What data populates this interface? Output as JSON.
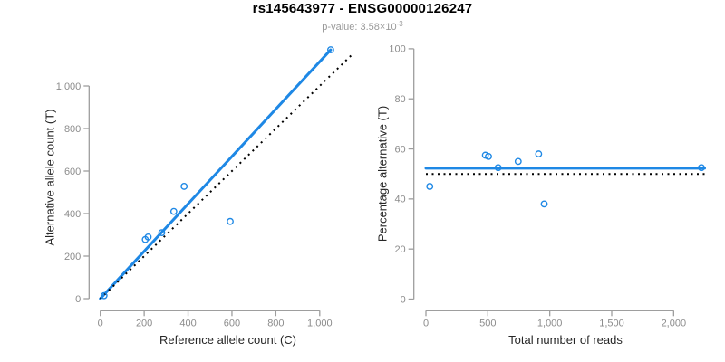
{
  "header": {
    "title": "rs145643977 - ENSG00000126247",
    "subtitle_prefix": "p-value: 3.58×10",
    "subtitle_exponent": "-3"
  },
  "colors": {
    "accent_blue": "#1E88E5",
    "line_black": "#000000",
    "axis_line": "#9E9E9E",
    "tick_label": "#8C8C8C",
    "axis_title": "#262626",
    "title_text": "#000000",
    "subtitle_text": "#999999",
    "background": "#FFFFFF"
  },
  "chart_data": [
    {
      "type": "scatter",
      "name": "allele-counts-scatter",
      "xlabel": "Reference allele count (C)",
      "ylabel": "Alternative allele count (T)",
      "xlim": [
        0,
        1150
      ],
      "ylim": [
        0,
        1200
      ],
      "grid": false,
      "legend": "none",
      "xticks": {
        "values": [
          0,
          200,
          400,
          600,
          800,
          1000
        ],
        "labels": [
          "0",
          "200",
          "400",
          "600",
          "800",
          "1,000"
        ]
      },
      "yticks": {
        "values": [
          0,
          200,
          400,
          600,
          800,
          1000
        ],
        "labels": [
          "0",
          "200",
          "400",
          "600",
          "800",
          "1,000"
        ]
      },
      "points": [
        [
          17,
          14
        ],
        [
          205,
          278
        ],
        [
          218,
          290
        ],
        [
          280,
          310
        ],
        [
          335,
          410
        ],
        [
          382,
          528
        ],
        [
          592,
          363
        ],
        [
          1050,
          1170
        ]
      ],
      "lines": [
        {
          "name": "regression-line",
          "style": "solid",
          "color_key": "accent_blue",
          "x1": 0,
          "y1": 0,
          "x2": 1050,
          "y2": 1170
        },
        {
          "name": "identity-line",
          "style": "dotted",
          "color_key": "line_black",
          "x1": 0,
          "y1": 0,
          "x2": 1150,
          "y2": 1150
        }
      ]
    },
    {
      "type": "scatter",
      "name": "percentage-vs-total-reads-scatter",
      "xlabel": "Total number of reads",
      "ylabel": "Percentage alternative (T)",
      "xlim": [
        0,
        2250
      ],
      "ylim": [
        0,
        100
      ],
      "grid": false,
      "legend": "none",
      "xticks": {
        "values": [
          0,
          500,
          1000,
          1500,
          2000
        ],
        "labels": [
          "0",
          "500",
          "1,000",
          "1,500",
          "2,000"
        ]
      },
      "yticks": {
        "values": [
          0,
          20,
          40,
          60,
          80,
          100
        ],
        "labels": [
          "0",
          "20",
          "40",
          "60",
          "80",
          "100"
        ]
      },
      "points": [
        [
          31,
          45
        ],
        [
          480,
          57.5
        ],
        [
          505,
          57
        ],
        [
          583,
          52.5
        ],
        [
          745,
          55
        ],
        [
          910,
          58
        ],
        [
          955,
          38
        ],
        [
          2224,
          52.5
        ]
      ],
      "lines": [
        {
          "name": "mean-percentage-line",
          "style": "solid",
          "color_key": "accent_blue",
          "x1": 0,
          "y1": 52.3,
          "x2": 2250,
          "y2": 52.3
        },
        {
          "name": "expected-50pct-line",
          "style": "dotted",
          "color_key": "line_black",
          "x1": 0,
          "y1": 50,
          "x2": 2250,
          "y2": 50
        }
      ]
    }
  ]
}
